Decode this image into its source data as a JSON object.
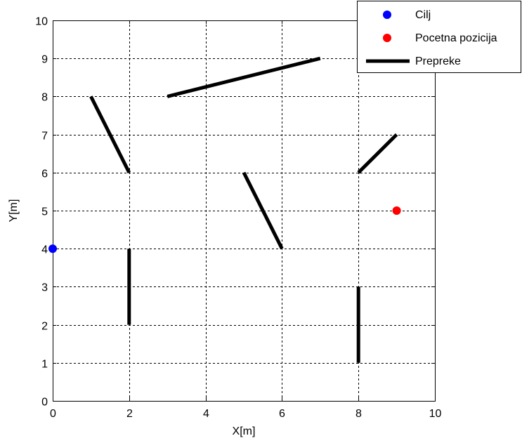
{
  "chart_data": {
    "type": "scatter",
    "xlabel": "X[m]",
    "ylabel": "Y[m]",
    "xlim": [
      0,
      10
    ],
    "ylim": [
      0,
      10
    ],
    "xticks": [
      "0",
      "2",
      "4",
      "6",
      "8",
      "10"
    ],
    "yticks": [
      "0",
      "1",
      "2",
      "3",
      "4",
      "5",
      "6",
      "7",
      "8",
      "9",
      "10"
    ],
    "grid": true,
    "legend_position": "top-right",
    "series": [
      {
        "name": "Cilj",
        "kind": "point",
        "color": "#0000ff",
        "points": [
          [
            0,
            4
          ]
        ]
      },
      {
        "name": "Pocetna pozicija",
        "kind": "point",
        "color": "#ff0000",
        "points": [
          [
            9,
            5
          ]
        ]
      },
      {
        "name": "Prepreke",
        "kind": "segments",
        "color": "#000000",
        "segments": [
          [
            [
              1,
              8
            ],
            [
              2,
              6
            ]
          ],
          [
            [
              3,
              8
            ],
            [
              7,
              9
            ]
          ],
          [
            [
              5,
              6
            ],
            [
              6,
              4
            ]
          ],
          [
            [
              8,
              6
            ],
            [
              9,
              7
            ]
          ],
          [
            [
              2,
              2
            ],
            [
              2,
              4
            ]
          ],
          [
            [
              8,
              1
            ],
            [
              8,
              3
            ]
          ]
        ]
      }
    ]
  }
}
